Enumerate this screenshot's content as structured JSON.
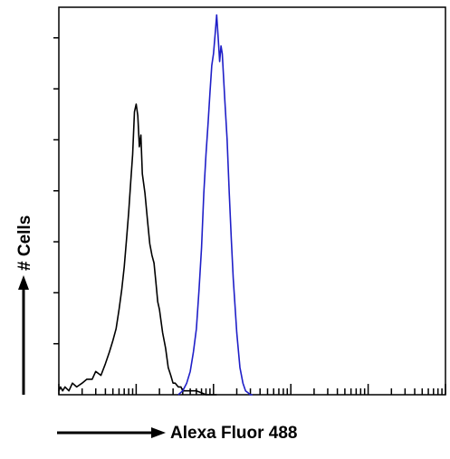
{
  "chart_data": {
    "type": "line",
    "title": "",
    "xlabel": "Alexa Fluor 488",
    "ylabel": "# Cells",
    "x_scale": "log",
    "xlim": [
      1,
      100000
    ],
    "ylim": [
      0,
      100
    ],
    "grid": false,
    "legend": "none",
    "series": [
      {
        "color": "#000000",
        "x": [
          1.0,
          1.05,
          1.12,
          1.2,
          1.35,
          1.5,
          1.7,
          2.0,
          2.3,
          2.7,
          3.0,
          3.5,
          4.0,
          4.5,
          5.0,
          5.5,
          6.0,
          6.5,
          7.0,
          7.5,
          8.0,
          8.5,
          9.0,
          9.5,
          10.0,
          10.5,
          11.0,
          11.5,
          12.0,
          13.0,
          14.0,
          15.0,
          16.0,
          17.0,
          18.0,
          19.0,
          20.0,
          22.0,
          24.0,
          26.0,
          28.0,
          30.0,
          32.0,
          35.0,
          38.0,
          40.0,
          45.0,
          50.0,
          60.0,
          70.0,
          80.0,
          100.0,
          110.0
        ],
        "y": [
          1,
          2,
          1,
          2,
          1,
          3,
          2,
          3,
          4,
          4,
          6,
          5,
          8,
          11,
          14,
          17,
          22,
          27,
          33,
          40,
          47,
          55,
          62,
          73,
          75,
          72,
          64,
          67,
          57,
          52,
          45,
          39,
          36,
          34,
          29,
          24,
          22,
          16,
          12,
          7,
          5,
          3,
          3,
          2,
          2,
          1,
          1,
          1,
          1,
          0.5,
          0,
          0,
          0
        ]
      },
      {
        "color": "#1f1fc8",
        "x": [
          35.0,
          40.0,
          45.0,
          50.0,
          55.0,
          60.0,
          65.0,
          70.0,
          75.0,
          80.0,
          85.0,
          90.0,
          95.0,
          100.0,
          105.0,
          110.0,
          115.0,
          120.0,
          125.0,
          130.0,
          140.0,
          150.0,
          160.0,
          170.0,
          180.0,
          200.0,
          220.0,
          240.0,
          260.0,
          280.0,
          300.0,
          320.0
        ],
        "y": [
          0,
          1,
          3,
          6,
          11,
          17,
          27,
          38,
          52,
          62,
          70,
          78,
          85,
          88,
          93,
          98,
          92,
          86,
          90,
          88,
          76,
          66,
          52,
          40,
          30,
          16,
          7,
          3,
          1,
          0.5,
          0,
          0
        ]
      }
    ]
  }
}
